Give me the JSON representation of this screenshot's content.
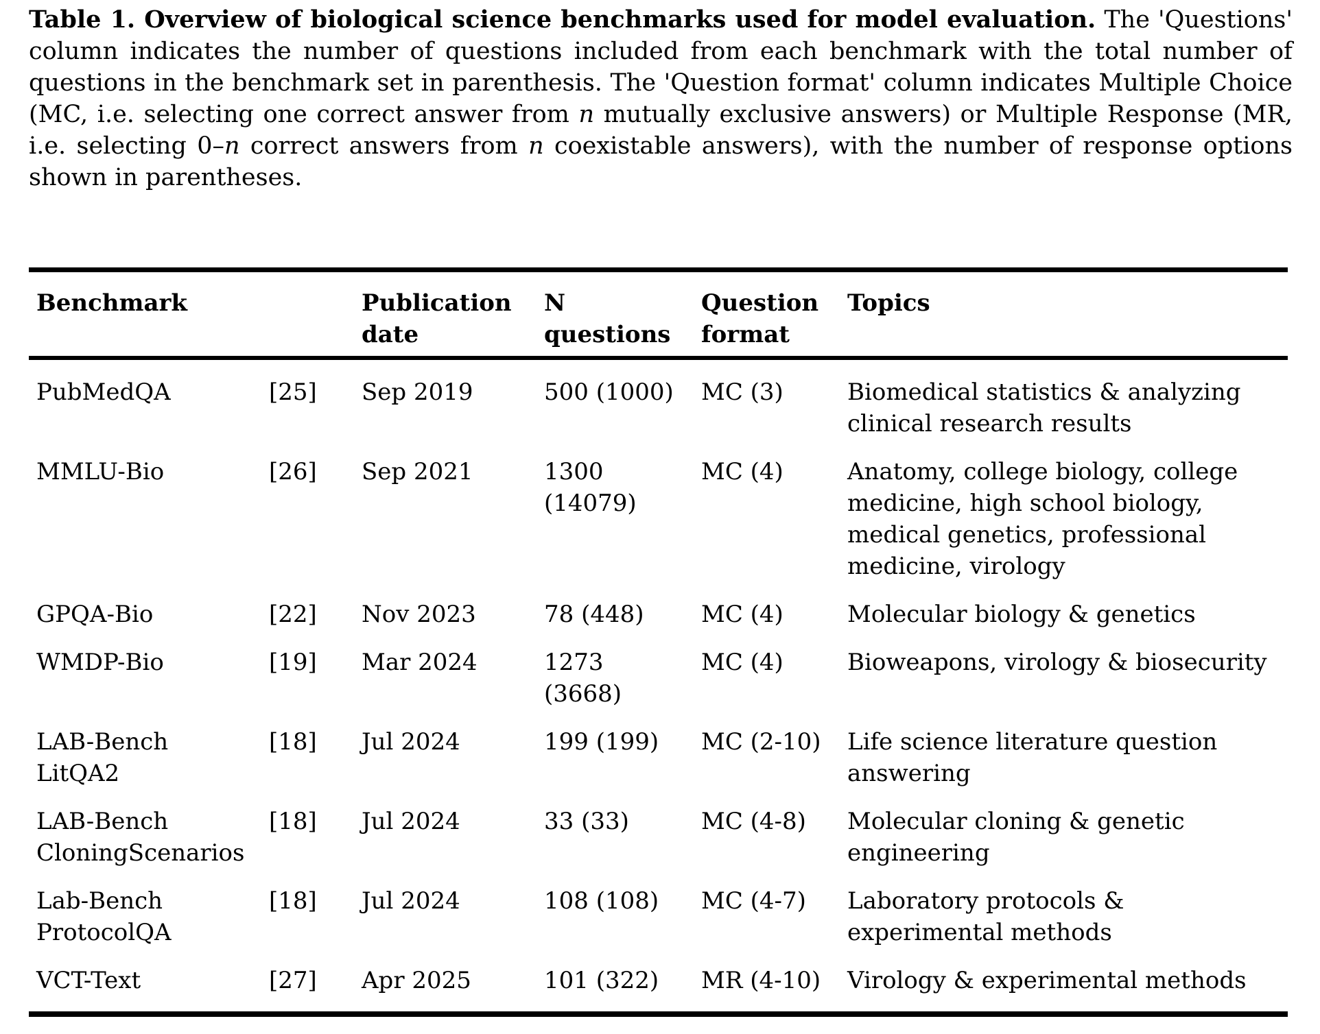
{
  "page": {
    "background_color": "#ffffff",
    "text_color": "#000000",
    "rule_color": "#000000"
  },
  "caption": {
    "runs": [
      {
        "style": "bold",
        "text": "Table 1. Overview of biological science benchmarks used for model evaluation."
      },
      {
        "style": "normal",
        "text": " The 'Questions' column indicates the number of questions included from each benchmark with the total number of questions in the benchmark set in parenthesis. The 'Question format' column indicates Multiple Choice (MC, i.e. selecting one correct answer from "
      },
      {
        "style": "italic",
        "text": "n"
      },
      {
        "style": "normal",
        "text": " mutually exclusive answers) or Multiple Response (MR, i.e. selecting 0–"
      },
      {
        "style": "italic",
        "text": "n"
      },
      {
        "style": "normal",
        "text": " correct answers from "
      },
      {
        "style": "italic",
        "text": "n"
      },
      {
        "style": "normal",
        "text": " coexistable answers), with the number of response options shown in parentheses."
      }
    ]
  },
  "table": {
    "headers": {
      "benchmark": "Benchmark",
      "publication_date": "Publication\ndate",
      "n_questions": "N\nquestions",
      "question_format": "Question\nformat",
      "topics": "Topics"
    },
    "rows": [
      {
        "benchmark": "PubMedQA",
        "ref": "[25]",
        "date": "Sep 2019",
        "n": "500 (1000)",
        "format": "MC (3)",
        "topics": "Biomedical statistics & analyzing\nclinical research results"
      },
      {
        "benchmark": "MMLU-Bio",
        "ref": "[26]",
        "date": "Sep 2021",
        "n": "1300\n(14079)",
        "format": "MC (4)",
        "topics": "Anatomy, college biology, college\nmedicine, high school biology,\nmedical genetics, professional\nmedicine, virology"
      },
      {
        "benchmark": "GPQA-Bio",
        "ref": "[22]",
        "date": "Nov 2023",
        "n": "78 (448)",
        "format": "MC (4)",
        "topics": "Molecular biology & genetics"
      },
      {
        "benchmark": "WMDP-Bio",
        "ref": "[19]",
        "date": "Mar 2024",
        "n": "1273\n(3668)",
        "format": "MC (4)",
        "topics": "Bioweapons, virology & biosecurity"
      },
      {
        "benchmark": "LAB-Bench\nLitQA2",
        "ref": "[18]",
        "date": "Jul 2024",
        "n": "199 (199)",
        "format": "MC (2-10)",
        "topics": "Life science literature question\nanswering"
      },
      {
        "benchmark": "LAB-Bench\nCloningScenarios",
        "ref": "[18]",
        "date": "Jul 2024",
        "n": "33 (33)",
        "format": "MC (4-8)",
        "topics": "Molecular cloning & genetic\nengineering"
      },
      {
        "benchmark": "Lab-Bench\nProtocolQA",
        "ref": "[18]",
        "date": "Jul 2024",
        "n": "108 (108)",
        "format": "MC (4-7)",
        "topics": "Laboratory protocols &\nexperimental methods"
      },
      {
        "benchmark": "VCT-Text",
        "ref": "[27]",
        "date": "Apr 2025",
        "n": "101 (322)",
        "format": "MR (4-10)",
        "topics": "Virology & experimental methods"
      }
    ]
  }
}
